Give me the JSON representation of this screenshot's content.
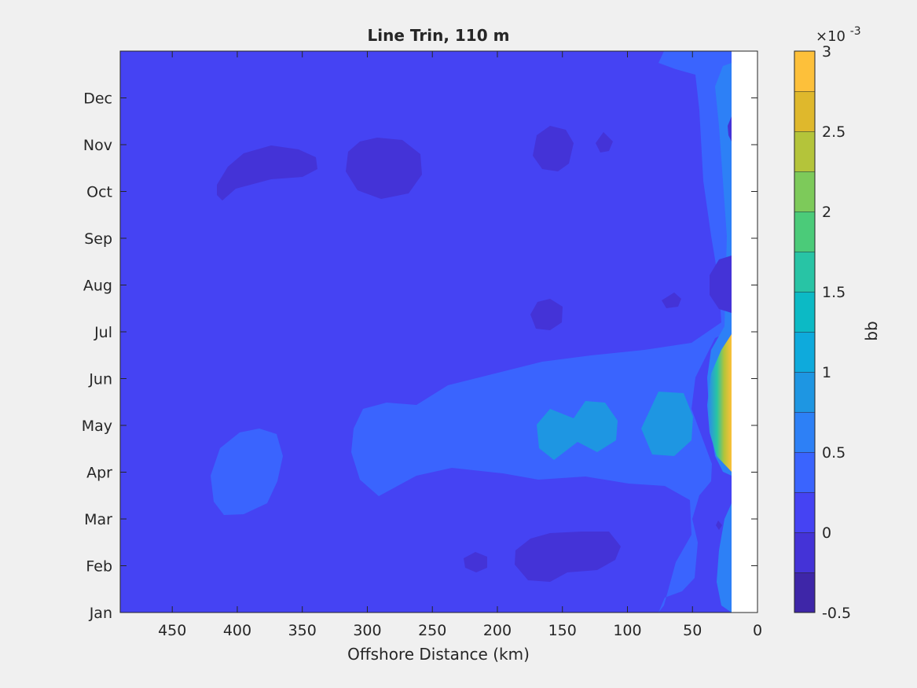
{
  "chart_data": {
    "type": "heatmap",
    "subtype": "filled-contour",
    "title": "Line Trin, 110 m",
    "xlabel": "Offshore Distance (km)",
    "ylabel": "",
    "x_direction": "reversed",
    "xlim": [
      0,
      490
    ],
    "xticks": [
      "450",
      "400",
      "350",
      "300",
      "250",
      "200",
      "150",
      "100",
      "50",
      "0"
    ],
    "xtick_values": [
      450,
      400,
      350,
      300,
      250,
      200,
      150,
      100,
      50,
      0
    ],
    "yticks": [
      "Jan",
      "Feb",
      "Mar",
      "Apr",
      "May",
      "Jun",
      "Jul",
      "Aug",
      "Sep",
      "Oct",
      "Nov",
      "Dec"
    ],
    "background_level": 0.1,
    "features": [
      {
        "type": "blob",
        "x": 375,
        "month": "Oct",
        "level": -0.1
      },
      {
        "type": "blob",
        "x": 295,
        "month": "Oct",
        "level": -0.1
      },
      {
        "type": "blob",
        "x": 157,
        "month": "Nov",
        "level": -0.1
      },
      {
        "type": "blob",
        "x": 120,
        "month": "Nov",
        "level": -0.1
      },
      {
        "type": "blob",
        "x": 155,
        "month": "Jul",
        "level": -0.1
      },
      {
        "type": "blob",
        "x": 65,
        "month": "Aug",
        "level": -0.1
      },
      {
        "type": "blob",
        "x": 30,
        "month": "Aug",
        "level": -0.1
      },
      {
        "type": "blob",
        "x": 393,
        "month": "Apr",
        "level": 0.35
      },
      {
        "type": "tongue",
        "x_range": [
          20,
          310
        ],
        "month": "May",
        "level": 0.35
      },
      {
        "type": "blob",
        "x": 140,
        "month": "May",
        "level": 0.6
      },
      {
        "type": "blob",
        "x": 70,
        "month": "May",
        "level": 0.6
      },
      {
        "type": "coastal_max",
        "x": 20,
        "month": "May",
        "level": 2.75
      },
      {
        "type": "blob",
        "x": 200,
        "month": "Feb",
        "level": -0.1
      },
      {
        "type": "blob",
        "x": 145,
        "month": "Feb",
        "level": -0.1
      }
    ],
    "colorbar": {
      "label": "bb",
      "exponent_label": "×10",
      "exponent_power": "-3",
      "range": [
        -0.5,
        3
      ],
      "ticks": [
        "-0.5",
        "0",
        "0.5",
        "1",
        "1.5",
        "2",
        "2.5",
        "3"
      ],
      "tick_values": [
        -0.5,
        0,
        0.5,
        1,
        1.5,
        2,
        2.5,
        3
      ],
      "levels": [
        -0.5,
        -0.25,
        0,
        0.25,
        0.5,
        0.75,
        1,
        1.25,
        1.5,
        1.75,
        2,
        2.25,
        2.5,
        2.75,
        3
      ],
      "colors": [
        "#3e26a8",
        "#4433d7",
        "#4543f3",
        "#3a64fe",
        "#2d80f6",
        "#1e96e2",
        "#0eaadc",
        "#0cbac5",
        "#28c4a5",
        "#4bcb79",
        "#7dca5a",
        "#b4c43a",
        "#dfb82c",
        "#fdc03a",
        "#f7e01f"
      ]
    }
  }
}
